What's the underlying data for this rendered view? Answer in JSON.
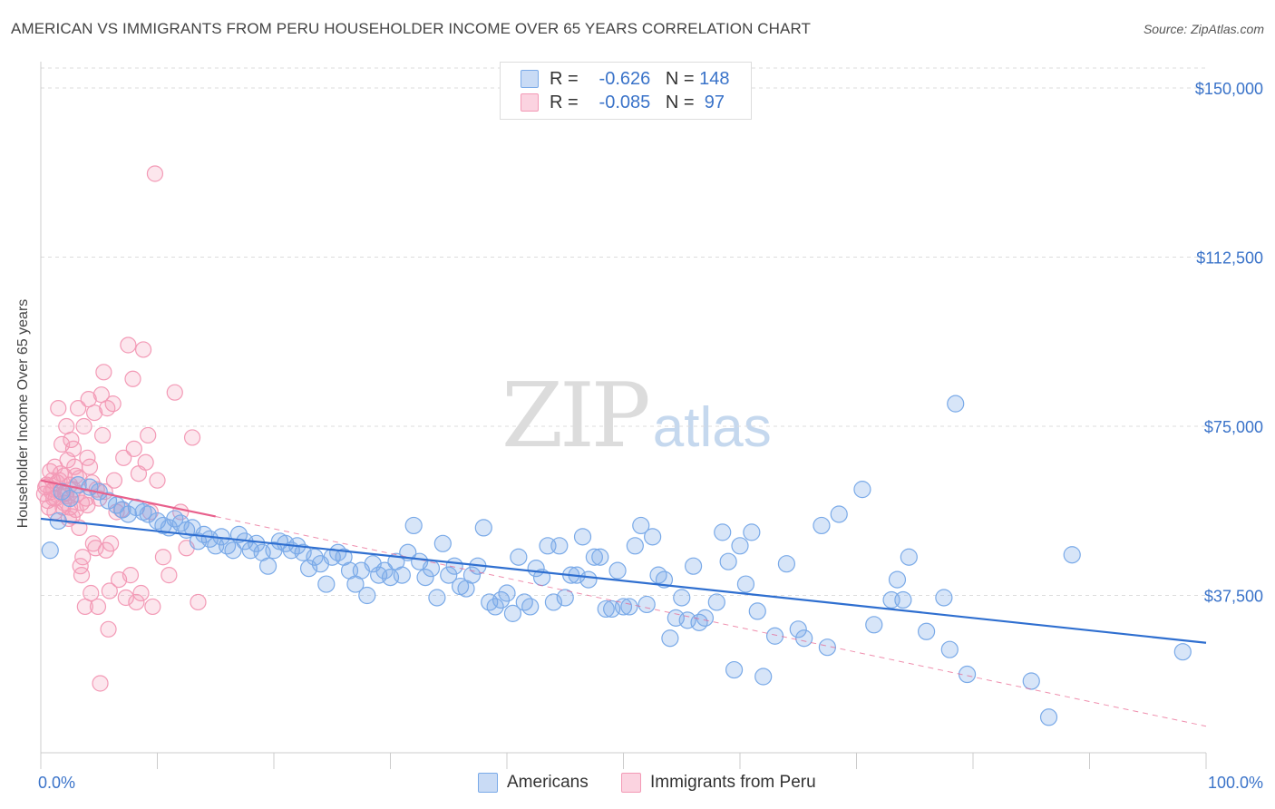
{
  "title": "AMERICAN VS IMMIGRANTS FROM PERU HOUSEHOLDER INCOME OVER 65 YEARS CORRELATION CHART",
  "source": "Source: ZipAtlas.com",
  "watermark": {
    "zip": "ZIP",
    "atlas": "atlas"
  },
  "legend": {
    "r_label": "R =",
    "n_label": "N =",
    "rows": [
      {
        "r": "-0.626",
        "n": "148"
      },
      {
        "r": "-0.085",
        "n": " 97"
      }
    ]
  },
  "colors": {
    "americans": "#7aaae8",
    "peru": "#f39ab6",
    "americans_line": "#2f6fd0",
    "peru_line": "#e8608c",
    "axis_text": "#3a73c9"
  },
  "chart_data": {
    "type": "scatter",
    "title": "AMERICAN VS IMMIGRANTS FROM PERU HOUSEHOLDER INCOME OVER 65 YEARS CORRELATION CHART",
    "xlabel": "",
    "ylabel": "Householder Income Over 65 years",
    "xlim": [
      0,
      100
    ],
    "ylim": [
      0,
      155000
    ],
    "x_tick_labels": [
      "0.0%",
      "100.0%"
    ],
    "y_ticks": [
      {
        "value": 150000,
        "label": "$150,000"
      },
      {
        "value": 112500,
        "label": "$112,500"
      },
      {
        "value": 75000,
        "label": "$75,000"
      },
      {
        "value": 37500,
        "label": "$37,500"
      }
    ],
    "grid": true,
    "legend_position": "top-center",
    "series": [
      {
        "name": "Americans",
        "trend": {
          "x": [
            0,
            100
          ],
          "y": [
            54500,
            27000
          ]
        },
        "points": [
          [
            0.8,
            47500
          ],
          [
            1.5,
            54000
          ],
          [
            1.8,
            60500
          ],
          [
            2.5,
            59000
          ],
          [
            3.2,
            62000
          ],
          [
            4.2,
            61500
          ],
          [
            5.0,
            60500
          ],
          [
            5.8,
            58500
          ],
          [
            6.5,
            57500
          ],
          [
            7.0,
            56500
          ],
          [
            7.5,
            55500
          ],
          [
            8.2,
            57000
          ],
          [
            8.8,
            56000
          ],
          [
            9.2,
            55500
          ],
          [
            10.0,
            54000
          ],
          [
            10.5,
            53000
          ],
          [
            11.0,
            52500
          ],
          [
            11.5,
            54500
          ],
          [
            12.0,
            53500
          ],
          [
            12.5,
            52000
          ],
          [
            13.0,
            52500
          ],
          [
            13.5,
            49500
          ],
          [
            14.0,
            51000
          ],
          [
            14.5,
            50000
          ],
          [
            15.0,
            48500
          ],
          [
            15.5,
            50500
          ],
          [
            16.0,
            48500
          ],
          [
            16.5,
            47500
          ],
          [
            17.0,
            51000
          ],
          [
            17.5,
            49500
          ],
          [
            18.0,
            47500
          ],
          [
            18.5,
            49000
          ],
          [
            19.0,
            47000
          ],
          [
            19.5,
            44000
          ],
          [
            20.0,
            47500
          ],
          [
            20.5,
            49500
          ],
          [
            21.0,
            49000
          ],
          [
            21.5,
            47500
          ],
          [
            22.0,
            48500
          ],
          [
            22.5,
            47000
          ],
          [
            23.0,
            43500
          ],
          [
            23.5,
            46000
          ],
          [
            24.0,
            44500
          ],
          [
            24.5,
            40000
          ],
          [
            25.0,
            46000
          ],
          [
            25.5,
            47000
          ],
          [
            26.0,
            46000
          ],
          [
            26.5,
            43000
          ],
          [
            27.0,
            40000
          ],
          [
            27.5,
            43000
          ],
          [
            28.0,
            37500
          ],
          [
            28.5,
            44500
          ],
          [
            29.0,
            42000
          ],
          [
            29.5,
            43000
          ],
          [
            30.0,
            41500
          ],
          [
            30.5,
            45000
          ],
          [
            31.0,
            42000
          ],
          [
            31.5,
            47000
          ],
          [
            32.0,
            53000
          ],
          [
            32.5,
            45000
          ],
          [
            33.0,
            41500
          ],
          [
            33.5,
            43500
          ],
          [
            34.0,
            37000
          ],
          [
            34.5,
            49000
          ],
          [
            35.0,
            42000
          ],
          [
            35.5,
            44000
          ],
          [
            36.0,
            39500
          ],
          [
            36.5,
            39000
          ],
          [
            37.0,
            42000
          ],
          [
            37.5,
            44000
          ],
          [
            38.0,
            52500
          ],
          [
            38.5,
            36000
          ],
          [
            39.0,
            35000
          ],
          [
            39.5,
            36500
          ],
          [
            40.0,
            38000
          ],
          [
            40.5,
            33500
          ],
          [
            41.0,
            46000
          ],
          [
            41.5,
            36000
          ],
          [
            42.0,
            35000
          ],
          [
            42.5,
            43500
          ],
          [
            43.0,
            41500
          ],
          [
            43.5,
            48500
          ],
          [
            44.0,
            36000
          ],
          [
            44.5,
            48500
          ],
          [
            45.0,
            37000
          ],
          [
            45.5,
            42000
          ],
          [
            46.0,
            42000
          ],
          [
            46.5,
            50500
          ],
          [
            47.0,
            41000
          ],
          [
            47.5,
            46000
          ],
          [
            48.0,
            46000
          ],
          [
            48.5,
            34500
          ],
          [
            49.0,
            34500
          ],
          [
            49.5,
            43000
          ],
          [
            50.0,
            35000
          ],
          [
            50.5,
            35000
          ],
          [
            51.0,
            48500
          ],
          [
            51.5,
            53000
          ],
          [
            52.0,
            35500
          ],
          [
            52.5,
            50500
          ],
          [
            53.0,
            42000
          ],
          [
            53.5,
            41000
          ],
          [
            54.0,
            28000
          ],
          [
            54.5,
            32500
          ],
          [
            55.0,
            37000
          ],
          [
            55.5,
            32000
          ],
          [
            56.0,
            44000
          ],
          [
            56.5,
            31500
          ],
          [
            57.0,
            32500
          ],
          [
            58.0,
            36000
          ],
          [
            58.5,
            51500
          ],
          [
            59.0,
            45000
          ],
          [
            59.5,
            21000
          ],
          [
            60.0,
            48500
          ],
          [
            60.5,
            40000
          ],
          [
            61.0,
            51500
          ],
          [
            61.5,
            34000
          ],
          [
            62.0,
            19500
          ],
          [
            63.0,
            28500
          ],
          [
            64.0,
            44500
          ],
          [
            65.0,
            30000
          ],
          [
            65.5,
            28000
          ],
          [
            67.0,
            53000
          ],
          [
            67.5,
            26000
          ],
          [
            68.5,
            55500
          ],
          [
            70.5,
            61000
          ],
          [
            71.5,
            31000
          ],
          [
            73.0,
            36500
          ],
          [
            73.5,
            41000
          ],
          [
            74.0,
            36500
          ],
          [
            74.5,
            46000
          ],
          [
            76.0,
            29500
          ],
          [
            77.5,
            37000
          ],
          [
            78.0,
            25500
          ],
          [
            78.5,
            80000
          ],
          [
            79.5,
            20000
          ],
          [
            85.0,
            18500
          ],
          [
            86.5,
            10500
          ],
          [
            88.5,
            46500
          ],
          [
            98.0,
            25000
          ]
        ]
      },
      {
        "name": "Immigrants from Peru",
        "trend": {
          "x": [
            0,
            15
          ],
          "y": [
            63000,
            55000
          ]
        },
        "trend_extension": {
          "x": [
            15,
            100
          ],
          "y": [
            55000,
            8500
          ]
        },
        "points": [
          [
            0.3,
            60000
          ],
          [
            0.5,
            62000
          ],
          [
            0.6,
            58500
          ],
          [
            0.8,
            65000
          ],
          [
            1.0,
            63000
          ],
          [
            1.1,
            61000
          ],
          [
            1.2,
            66000
          ],
          [
            1.3,
            59000
          ],
          [
            1.5,
            79000
          ],
          [
            1.6,
            63000
          ],
          [
            1.8,
            71000
          ],
          [
            1.9,
            57000
          ],
          [
            2.0,
            64000
          ],
          [
            2.1,
            60000
          ],
          [
            2.2,
            75000
          ],
          [
            2.3,
            67500
          ],
          [
            2.4,
            54500
          ],
          [
            2.5,
            62000
          ],
          [
            2.6,
            72000
          ],
          [
            2.7,
            55000
          ],
          [
            2.8,
            70000
          ],
          [
            2.9,
            66000
          ],
          [
            3.0,
            64000
          ],
          [
            3.1,
            60000
          ],
          [
            3.2,
            79000
          ],
          [
            3.3,
            52500
          ],
          [
            3.4,
            44000
          ],
          [
            3.5,
            42000
          ],
          [
            3.6,
            46000
          ],
          [
            3.7,
            75000
          ],
          [
            3.8,
            35000
          ],
          [
            3.9,
            59000
          ],
          [
            4.0,
            68000
          ],
          [
            4.1,
            81000
          ],
          [
            4.2,
            66000
          ],
          [
            4.3,
            38000
          ],
          [
            4.4,
            62500
          ],
          [
            4.5,
            49000
          ],
          [
            4.6,
            78000
          ],
          [
            4.7,
            48000
          ],
          [
            4.8,
            61000
          ],
          [
            4.9,
            35000
          ],
          [
            5.0,
            59000
          ],
          [
            5.1,
            18000
          ],
          [
            5.2,
            82000
          ],
          [
            5.3,
            73000
          ],
          [
            5.4,
            87000
          ],
          [
            5.5,
            60500
          ],
          [
            5.6,
            47500
          ],
          [
            5.7,
            79000
          ],
          [
            5.8,
            30000
          ],
          [
            5.9,
            38500
          ],
          [
            6.0,
            49000
          ],
          [
            6.2,
            80000
          ],
          [
            6.3,
            63000
          ],
          [
            6.5,
            56000
          ],
          [
            6.7,
            41000
          ],
          [
            6.9,
            56500
          ],
          [
            7.1,
            68000
          ],
          [
            7.3,
            37000
          ],
          [
            7.5,
            93000
          ],
          [
            7.7,
            42000
          ],
          [
            7.9,
            85500
          ],
          [
            8.0,
            70000
          ],
          [
            8.2,
            36000
          ],
          [
            8.4,
            64500
          ],
          [
            8.6,
            38000
          ],
          [
            8.8,
            92000
          ],
          [
            9.0,
            67000
          ],
          [
            9.2,
            73000
          ],
          [
            9.4,
            56000
          ],
          [
            9.6,
            35000
          ],
          [
            9.8,
            131000
          ],
          [
            10.0,
            63000
          ],
          [
            10.5,
            46000
          ],
          [
            11.0,
            42000
          ],
          [
            11.5,
            82500
          ],
          [
            12.0,
            56000
          ],
          [
            12.5,
            48000
          ],
          [
            13.0,
            72500
          ],
          [
            13.5,
            36000
          ],
          [
            2.0,
            58000
          ],
          [
            1.4,
            62500
          ],
          [
            0.7,
            57000
          ],
          [
            3.0,
            56500
          ],
          [
            2.5,
            57000
          ],
          [
            1.7,
            64500
          ],
          [
            0.9,
            60500
          ],
          [
            3.5,
            58000
          ],
          [
            4.0,
            57500
          ],
          [
            1.2,
            56000
          ],
          [
            2.8,
            61000
          ],
          [
            0.4,
            61500
          ],
          [
            1.9,
            60000
          ],
          [
            3.3,
            63500
          ],
          [
            2.2,
            59500
          ],
          [
            1.1,
            59000
          ]
        ]
      }
    ]
  },
  "bottom_legend": [
    "Americans",
    "Immigrants from Peru"
  ]
}
